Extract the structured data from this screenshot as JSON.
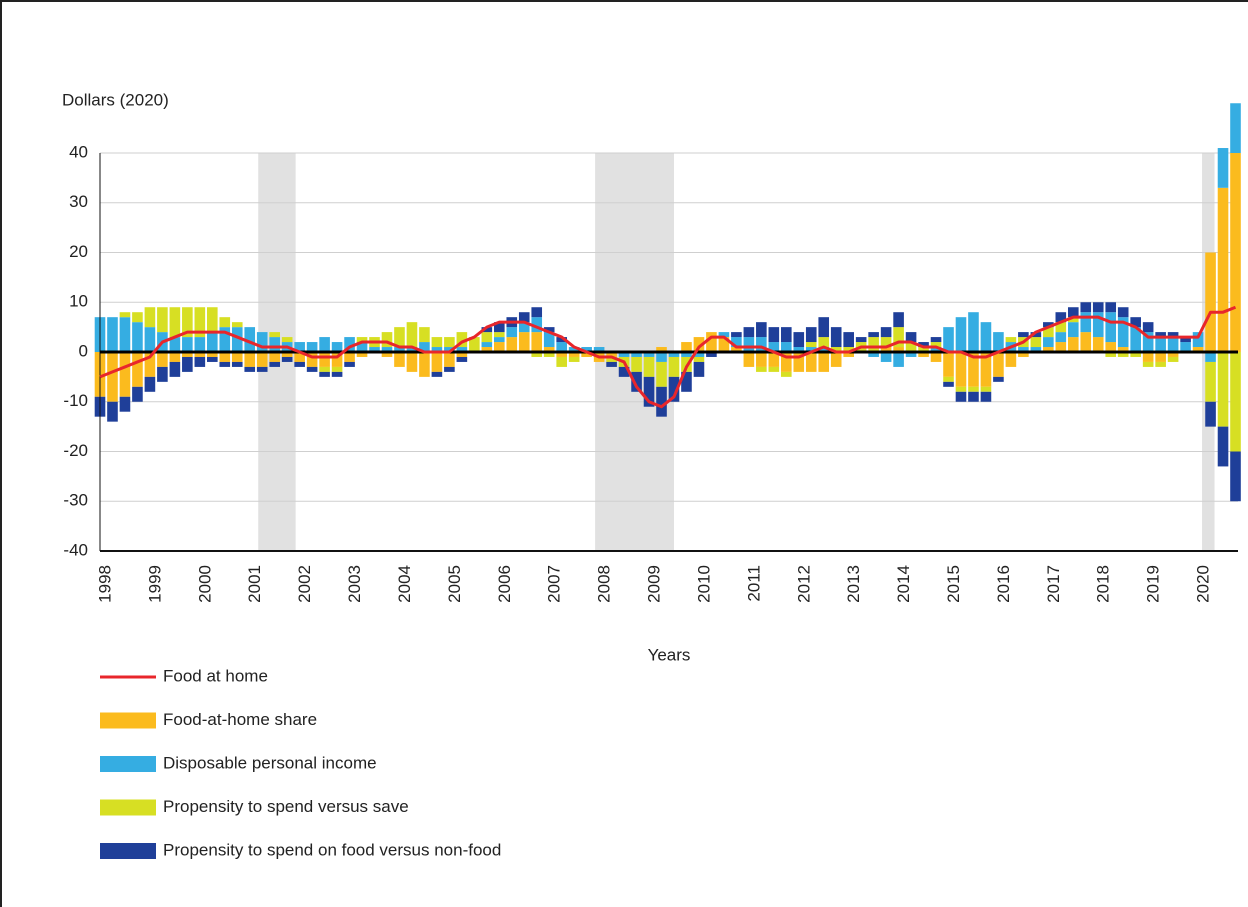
{
  "chart_data": {
    "type": "bar",
    "y_label": "Dollars (2020)",
    "x_label": "Years",
    "xlim": [
      1998,
      2020.8
    ],
    "xticks": [
      1998,
      1999,
      2000,
      2001,
      2002,
      2003,
      2004,
      2005,
      2006,
      2007,
      2008,
      2009,
      2010,
      2011,
      2012,
      2013,
      2014,
      2015,
      2016,
      2017,
      2018,
      2019,
      2020
    ],
    "ylim": [
      -40,
      40
    ],
    "yticks": [
      -40,
      -30,
      -20,
      -10,
      0,
      10,
      20,
      30,
      40
    ],
    "grid": true,
    "recessions": [
      [
        2001.17,
        2001.92
      ],
      [
        2007.92,
        2009.5
      ],
      [
        2020.08,
        2020.33
      ]
    ],
    "x": [
      1998,
      1998.25,
      1998.5,
      1998.75,
      1999,
      1999.25,
      1999.5,
      1999.75,
      2000,
      2000.25,
      2000.5,
      2000.75,
      2001,
      2001.25,
      2001.5,
      2001.75,
      2002,
      2002.25,
      2002.5,
      2002.75,
      2003,
      2003.25,
      2003.5,
      2003.75,
      2004,
      2004.25,
      2004.5,
      2004.75,
      2005,
      2005.25,
      2005.5,
      2005.75,
      2006,
      2006.25,
      2006.5,
      2006.75,
      2007,
      2007.25,
      2007.5,
      2007.75,
      2008,
      2008.25,
      2008.5,
      2008.75,
      2009,
      2009.25,
      2009.5,
      2009.75,
      2010,
      2010.25,
      2010.5,
      2010.75,
      2011,
      2011.25,
      2011.5,
      2011.75,
      2012,
      2012.25,
      2012.5,
      2012.75,
      2013,
      2013.25,
      2013.5,
      2013.75,
      2014,
      2014.25,
      2014.5,
      2014.75,
      2015,
      2015.25,
      2015.5,
      2015.75,
      2016,
      2016.25,
      2016.5,
      2016.75,
      2017,
      2017.25,
      2017.5,
      2017.75,
      2018,
      2018.25,
      2018.5,
      2018.75,
      2019,
      2019.25,
      2019.5,
      2019.75,
      2020,
      2020.25,
      2020.5,
      2020.75
    ],
    "series": [
      {
        "name": "Food at home",
        "kind": "line",
        "color": "#e8262b",
        "values": [
          -5,
          -4,
          -3,
          -2,
          -1,
          2,
          3,
          4,
          4,
          4,
          4,
          3,
          2,
          1,
          1,
          1,
          0,
          -1,
          -1,
          -1,
          1,
          2,
          2,
          2,
          1,
          1,
          0,
          0,
          0,
          2,
          3,
          5,
          6,
          6,
          6,
          5,
          4,
          3,
          1,
          0,
          -1,
          -1,
          -2,
          -7,
          -10,
          -11,
          -9,
          -3,
          1,
          3,
          3,
          1,
          1,
          1,
          0,
          -1,
          -1,
          0,
          1,
          0,
          0,
          1,
          1,
          1,
          2,
          2,
          1,
          1,
          0,
          0,
          -1,
          -1,
          0,
          1,
          2,
          4,
          5,
          6,
          7,
          7,
          7,
          6,
          6,
          5,
          3,
          3,
          3,
          3,
          3,
          8,
          8,
          9
        ]
      },
      {
        "name": "Food-at-home share",
        "kind": "bar",
        "color": "#fbbb1e",
        "values": [
          -9,
          -10,
          -9,
          -7,
          -5,
          -3,
          -2,
          -1,
          -1,
          -1,
          -2,
          -2,
          -3,
          -3,
          -2,
          -1,
          -2,
          -3,
          -3,
          -3,
          -2,
          -1,
          0,
          -1,
          -3,
          -4,
          -5,
          -4,
          -3,
          -1,
          0,
          1,
          2,
          3,
          4,
          4,
          1,
          -1,
          -1,
          -1,
          -2,
          -1,
          0,
          0,
          0,
          1,
          0,
          2,
          3,
          4,
          3,
          1,
          -3,
          -3,
          -3,
          -4,
          -4,
          -4,
          -4,
          -3,
          -1,
          0,
          0,
          1,
          1,
          0,
          -1,
          -2,
          -5,
          -7,
          -7,
          -7,
          -5,
          -3,
          -1,
          0,
          1,
          2,
          3,
          4,
          3,
          2,
          1,
          0,
          -2,
          -2,
          -1,
          0,
          1,
          20,
          33,
          40
        ]
      },
      {
        "name": "Disposable personal income",
        "kind": "bar",
        "color": "#35ade2",
        "values": [
          7,
          7,
          7,
          6,
          5,
          4,
          3,
          3,
          3,
          4,
          5,
          5,
          5,
          4,
          3,
          2,
          2,
          2,
          3,
          2,
          3,
          2,
          1,
          1,
          1,
          1,
          2,
          1,
          1,
          1,
          0,
          1,
          1,
          2,
          2,
          3,
          3,
          2,
          1,
          1,
          1,
          0,
          -1,
          -1,
          -1,
          -2,
          -1,
          -1,
          -1,
          0,
          1,
          2,
          3,
          3,
          2,
          2,
          1,
          1,
          1,
          0,
          0,
          0,
          -1,
          -2,
          -3,
          -1,
          0,
          1,
          5,
          7,
          8,
          6,
          4,
          2,
          1,
          1,
          2,
          2,
          3,
          4,
          5,
          6,
          6,
          5,
          4,
          3,
          3,
          2,
          3,
          -2,
          8,
          10
        ]
      },
      {
        "name": "Propensity to spend versus save",
        "kind": "bar",
        "color": "#d7df23",
        "values": [
          0,
          0,
          1,
          2,
          4,
          5,
          6,
          6,
          6,
          5,
          2,
          1,
          0,
          0,
          1,
          1,
          0,
          0,
          -1,
          -1,
          0,
          1,
          2,
          3,
          4,
          5,
          3,
          2,
          2,
          3,
          3,
          2,
          1,
          0,
          0,
          -1,
          -1,
          -2,
          -1,
          0,
          0,
          -1,
          -2,
          -3,
          -4,
          -5,
          -4,
          -3,
          -1,
          0,
          0,
          0,
          0,
          -1,
          -1,
          -1,
          0,
          1,
          2,
          1,
          1,
          2,
          3,
          2,
          4,
          2,
          1,
          1,
          -1,
          -1,
          -1,
          -1,
          0,
          1,
          2,
          2,
          2,
          2,
          1,
          0,
          0,
          -1,
          -1,
          -1,
          -1,
          -1,
          -1,
          0,
          0,
          -8,
          -15,
          -20
        ]
      },
      {
        "name": "Propensity to spend on food versus non-food",
        "kind": "bar",
        "color": "#1f3f99",
        "values": [
          -4,
          -4,
          -3,
          -3,
          -3,
          -3,
          -3,
          -3,
          -2,
          -1,
          -1,
          -1,
          -1,
          -1,
          -1,
          -1,
          -1,
          -1,
          -1,
          -1,
          -1,
          0,
          0,
          0,
          0,
          0,
          0,
          -1,
          -1,
          -1,
          0,
          1,
          2,
          2,
          2,
          2,
          1,
          1,
          0,
          0,
          0,
          -1,
          -2,
          -4,
          -6,
          -6,
          -5,
          -4,
          -3,
          -1,
          0,
          1,
          2,
          3,
          3,
          3,
          3,
          3,
          4,
          4,
          3,
          1,
          1,
          2,
          3,
          2,
          1,
          1,
          -1,
          -2,
          -2,
          -2,
          -1,
          0,
          1,
          1,
          1,
          2,
          2,
          2,
          2,
          2,
          2,
          2,
          2,
          1,
          1,
          1,
          0,
          -5,
          -8,
          -10
        ]
      }
    ]
  }
}
